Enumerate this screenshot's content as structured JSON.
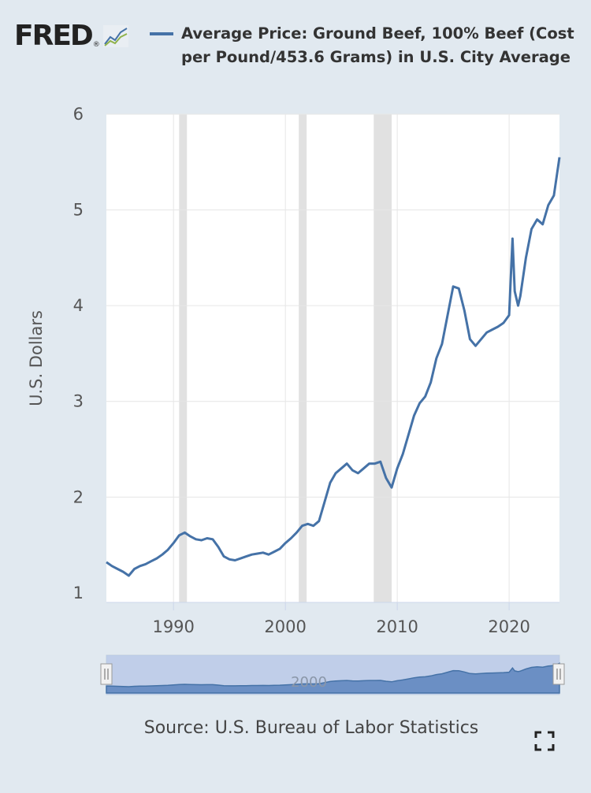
{
  "header": {
    "logo": "FRED",
    "title": "Average Price: Ground Beef, 100% Beef (Cost per Pound/453.6 Grams) in U.S. City Average"
  },
  "footer": {
    "source": "Source: U.S. Bureau of Labor Statistics"
  },
  "colors": {
    "series": "#4572a7",
    "recession": "#e1e1e1",
    "background": "#e1e9f0",
    "plot": "#ffffff"
  },
  "icons": {
    "logo_graph": "line-graph-icon",
    "fullscreen": "expand-icon"
  },
  "navigator": {
    "label": "2000"
  },
  "chart_data": {
    "type": "line",
    "title": "Average Price: Ground Beef, 100% Beef (Cost per Pound/453.6 Grams) in U.S. City Average",
    "xlabel": "",
    "ylabel": "U.S. Dollars",
    "xlim": [
      1984,
      2024.5
    ],
    "ylim": [
      0.9,
      6
    ],
    "yticks": [
      1,
      2,
      3,
      4,
      5,
      6
    ],
    "xticks": [
      1990,
      2000,
      2010,
      2020
    ],
    "grid": true,
    "legend": "top",
    "recessions": [
      [
        1990.5,
        1991.2
      ],
      [
        2001.2,
        2001.9
      ],
      [
        2007.9,
        2009.5
      ]
    ],
    "series": [
      {
        "name": "Average Price: Ground Beef, 100% Beef (Cost per Pound/453.6 Grams) in U.S. City Average",
        "x": [
          1984.0,
          1984.5,
          1985.0,
          1985.5,
          1986.0,
          1986.5,
          1987.0,
          1987.5,
          1988.0,
          1988.5,
          1989.0,
          1989.5,
          1990.0,
          1990.5,
          1991.0,
          1991.5,
          1992.0,
          1992.5,
          1993.0,
          1993.5,
          1994.0,
          1994.5,
          1995.0,
          1995.5,
          1996.0,
          1996.5,
          1997.0,
          1997.5,
          1998.0,
          1998.5,
          1999.0,
          1999.5,
          2000.0,
          2000.5,
          2001.0,
          2001.5,
          2002.0,
          2002.5,
          2003.0,
          2003.5,
          2004.0,
          2004.5,
          2005.0,
          2005.5,
          2006.0,
          2006.5,
          2007.0,
          2007.5,
          2008.0,
          2008.5,
          2009.0,
          2009.5,
          2010.0,
          2010.5,
          2011.0,
          2011.5,
          2012.0,
          2012.5,
          2013.0,
          2013.5,
          2014.0,
          2014.5,
          2015.0,
          2015.5,
          2016.0,
          2016.5,
          2017.0,
          2017.5,
          2018.0,
          2018.5,
          2019.0,
          2019.5,
          2020.0,
          2020.3,
          2020.5,
          2020.8,
          2021.0,
          2021.5,
          2022.0,
          2022.5,
          2023.0,
          2023.5,
          2024.0,
          2024.5
        ],
        "y": [
          1.32,
          1.28,
          1.25,
          1.22,
          1.18,
          1.25,
          1.28,
          1.3,
          1.33,
          1.36,
          1.4,
          1.45,
          1.52,
          1.6,
          1.63,
          1.59,
          1.56,
          1.55,
          1.57,
          1.56,
          1.48,
          1.38,
          1.35,
          1.34,
          1.36,
          1.38,
          1.4,
          1.41,
          1.42,
          1.4,
          1.43,
          1.46,
          1.52,
          1.57,
          1.63,
          1.7,
          1.72,
          1.7,
          1.75,
          1.95,
          2.15,
          2.25,
          2.3,
          2.35,
          2.28,
          2.25,
          2.3,
          2.35,
          2.35,
          2.37,
          2.2,
          2.1,
          2.3,
          2.45,
          2.65,
          2.85,
          2.98,
          3.05,
          3.2,
          3.45,
          3.6,
          3.9,
          4.2,
          4.18,
          3.95,
          3.65,
          3.58,
          3.65,
          3.72,
          3.75,
          3.78,
          3.82,
          3.9,
          4.7,
          4.15,
          4.0,
          4.1,
          4.5,
          4.8,
          4.9,
          4.85,
          5.05,
          5.15,
          5.55
        ]
      }
    ]
  }
}
